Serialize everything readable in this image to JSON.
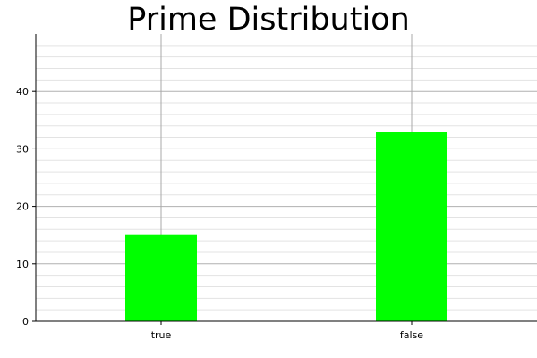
{
  "chart_data": {
    "type": "bar",
    "title": "Prime Distribution",
    "xlabel": "",
    "ylabel": "",
    "categories": [
      "true",
      "false"
    ],
    "values": [
      15,
      33
    ],
    "ylim": [
      0,
      50
    ],
    "yticks": [
      0,
      10,
      20,
      30,
      40
    ],
    "grid": true,
    "bar_color": "#00ff00"
  }
}
